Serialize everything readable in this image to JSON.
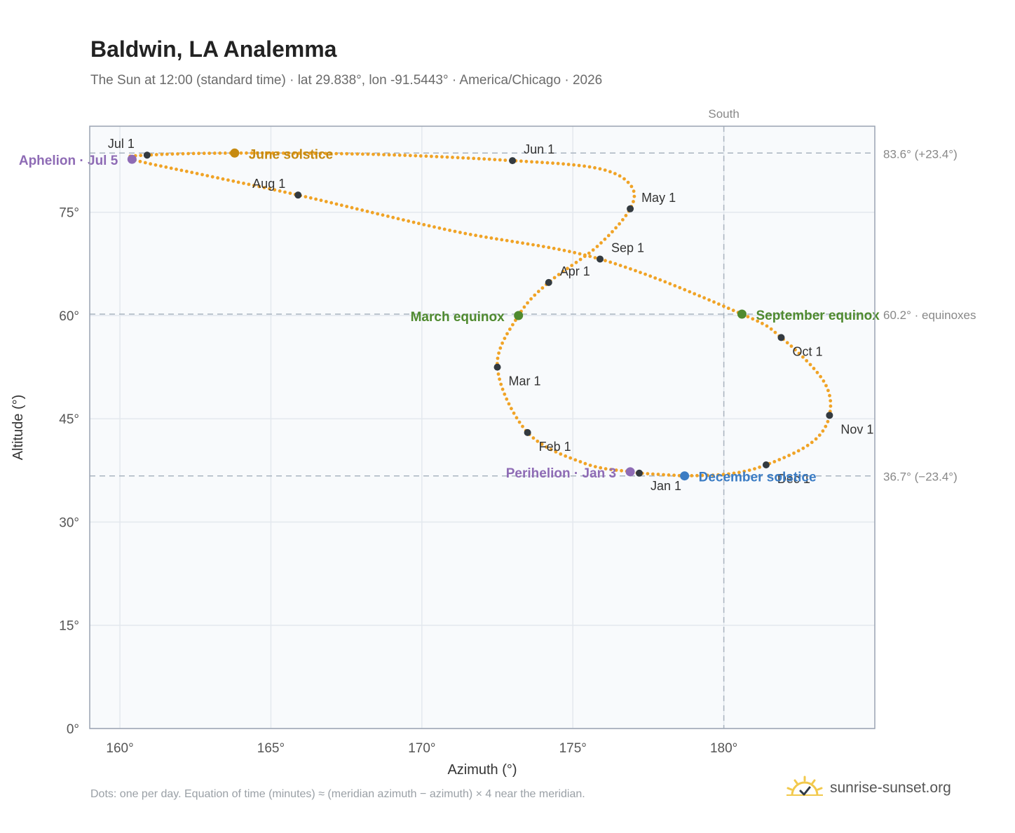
{
  "title": "Baldwin, LA Analemma",
  "subtitle": "The Sun at 12:00 (standard time) · lat 29.838°, lon -91.5443° · America/Chicago · 2026",
  "footnote": "Dots: one per day. Equation of time (minutes) ≈ (meridian azimuth − azimuth) × 4 near the meridian.",
  "brand": {
    "name": "sunrise-sunset.org",
    "icon": "sun-logo-icon"
  },
  "colors": {
    "path": "#f0a326",
    "month_marker": "#333a40",
    "equinox": "#4f8a2f",
    "june_solstice": "#c68a10",
    "december_solstice": "#3b7cc4",
    "perihelion_aphelion": "#8e6bb5"
  },
  "chart_data": {
    "type": "scatter",
    "xlabel": "Azimuth (°)",
    "ylabel": "Altitude (°)",
    "xlim": [
      159,
      185
    ],
    "ylim": [
      0,
      87.5
    ],
    "xticks": [
      160,
      165,
      170,
      175,
      180
    ],
    "xtick_labels": [
      "160°",
      "165°",
      "170°",
      "175°",
      "180°"
    ],
    "yticks": [
      0,
      15,
      30,
      45,
      60,
      75
    ],
    "ytick_labels": [
      "0°",
      "15°",
      "30°",
      "45°",
      "60°",
      "75°"
    ],
    "grid": true,
    "path_anchors": [
      {
        "x": 178.7,
        "y": 36.7
      },
      {
        "x": 177.2,
        "y": 37.1
      },
      {
        "x": 176.9,
        "y": 37.3
      },
      {
        "x": 175.4,
        "y": 38.5
      },
      {
        "x": 173.5,
        "y": 43.0
      },
      {
        "x": 172.5,
        "y": 52.5
      },
      {
        "x": 173.2,
        "y": 60.0
      },
      {
        "x": 174.2,
        "y": 64.8
      },
      {
        "x": 175.8,
        "y": 70.0
      },
      {
        "x": 176.9,
        "y": 75.5
      },
      {
        "x": 176.9,
        "y": 79.0
      },
      {
        "x": 175.8,
        "y": 81.4
      },
      {
        "x": 173.0,
        "y": 82.5
      },
      {
        "x": 168.5,
        "y": 83.4
      },
      {
        "x": 163.8,
        "y": 83.6
      },
      {
        "x": 160.9,
        "y": 83.3
      },
      {
        "x": 160.4,
        "y": 82.7
      },
      {
        "x": 162.8,
        "y": 80.4
      },
      {
        "x": 165.9,
        "y": 77.5
      },
      {
        "x": 171.0,
        "y": 72.3
      },
      {
        "x": 175.9,
        "y": 68.2
      },
      {
        "x": 180.6,
        "y": 60.2
      },
      {
        "x": 181.9,
        "y": 56.8
      },
      {
        "x": 183.3,
        "y": 50.5
      },
      {
        "x": 183.5,
        "y": 45.5
      },
      {
        "x": 182.9,
        "y": 41.5
      },
      {
        "x": 181.4,
        "y": 38.3
      },
      {
        "x": 180.2,
        "y": 37.0
      },
      {
        "x": 178.7,
        "y": 36.7
      }
    ],
    "month_markers": [
      {
        "label": "Jan 1",
        "x": 177.2,
        "y": 37.1,
        "anchor": "below"
      },
      {
        "label": "Feb 1",
        "x": 173.5,
        "y": 43.0,
        "anchor": "below-right"
      },
      {
        "label": "Mar 1",
        "x": 172.5,
        "y": 52.5,
        "anchor": "below-right"
      },
      {
        "label": "Apr 1",
        "x": 174.2,
        "y": 64.8,
        "anchor": "above-right"
      },
      {
        "label": "May 1",
        "x": 176.9,
        "y": 75.5,
        "anchor": "above-right"
      },
      {
        "label": "Jun 1",
        "x": 173.0,
        "y": 82.5,
        "anchor": "above-right"
      },
      {
        "label": "Jul 1",
        "x": 160.9,
        "y": 83.3,
        "anchor": "above-left"
      },
      {
        "label": "Aug 1",
        "x": 165.9,
        "y": 77.5,
        "anchor": "above-left"
      },
      {
        "label": "Sep 1",
        "x": 175.9,
        "y": 68.2,
        "anchor": "above-right"
      },
      {
        "label": "Oct 1",
        "x": 181.9,
        "y": 56.8,
        "anchor": "below-right"
      },
      {
        "label": "Nov 1",
        "x": 183.5,
        "y": 45.5,
        "anchor": "below-right"
      },
      {
        "label": "Dec 1",
        "x": 181.4,
        "y": 38.3,
        "anchor": "below-right"
      }
    ],
    "events": [
      {
        "label": "June solstice",
        "x": 163.8,
        "y": 83.6,
        "color": "#c68a10",
        "side": "right"
      },
      {
        "label": "March equinox",
        "x": 173.2,
        "y": 60.0,
        "color": "#4f8a2f",
        "side": "left"
      },
      {
        "label": "September equinox",
        "x": 180.6,
        "y": 60.2,
        "color": "#4f8a2f",
        "side": "right"
      },
      {
        "label": "December solstice",
        "x": 178.7,
        "y": 36.7,
        "color": "#3b7cc4",
        "side": "right"
      },
      {
        "label": "Perihelion · Jan 3",
        "x": 176.9,
        "y": 37.3,
        "color": "#8e6bb5",
        "side": "left"
      },
      {
        "label": "Aphelion · Jul 5",
        "x": 160.4,
        "y": 82.7,
        "color": "#8e6bb5",
        "side": "left"
      }
    ],
    "reference_lines": [
      {
        "y": 83.6,
        "label": "83.6° (+23.4°)"
      },
      {
        "y": 60.2,
        "label": "60.2° · equinoxes"
      },
      {
        "y": 36.7,
        "label": "36.7° (−23.4°)"
      }
    ],
    "meridian": {
      "x": 180,
      "label": "South"
    }
  }
}
